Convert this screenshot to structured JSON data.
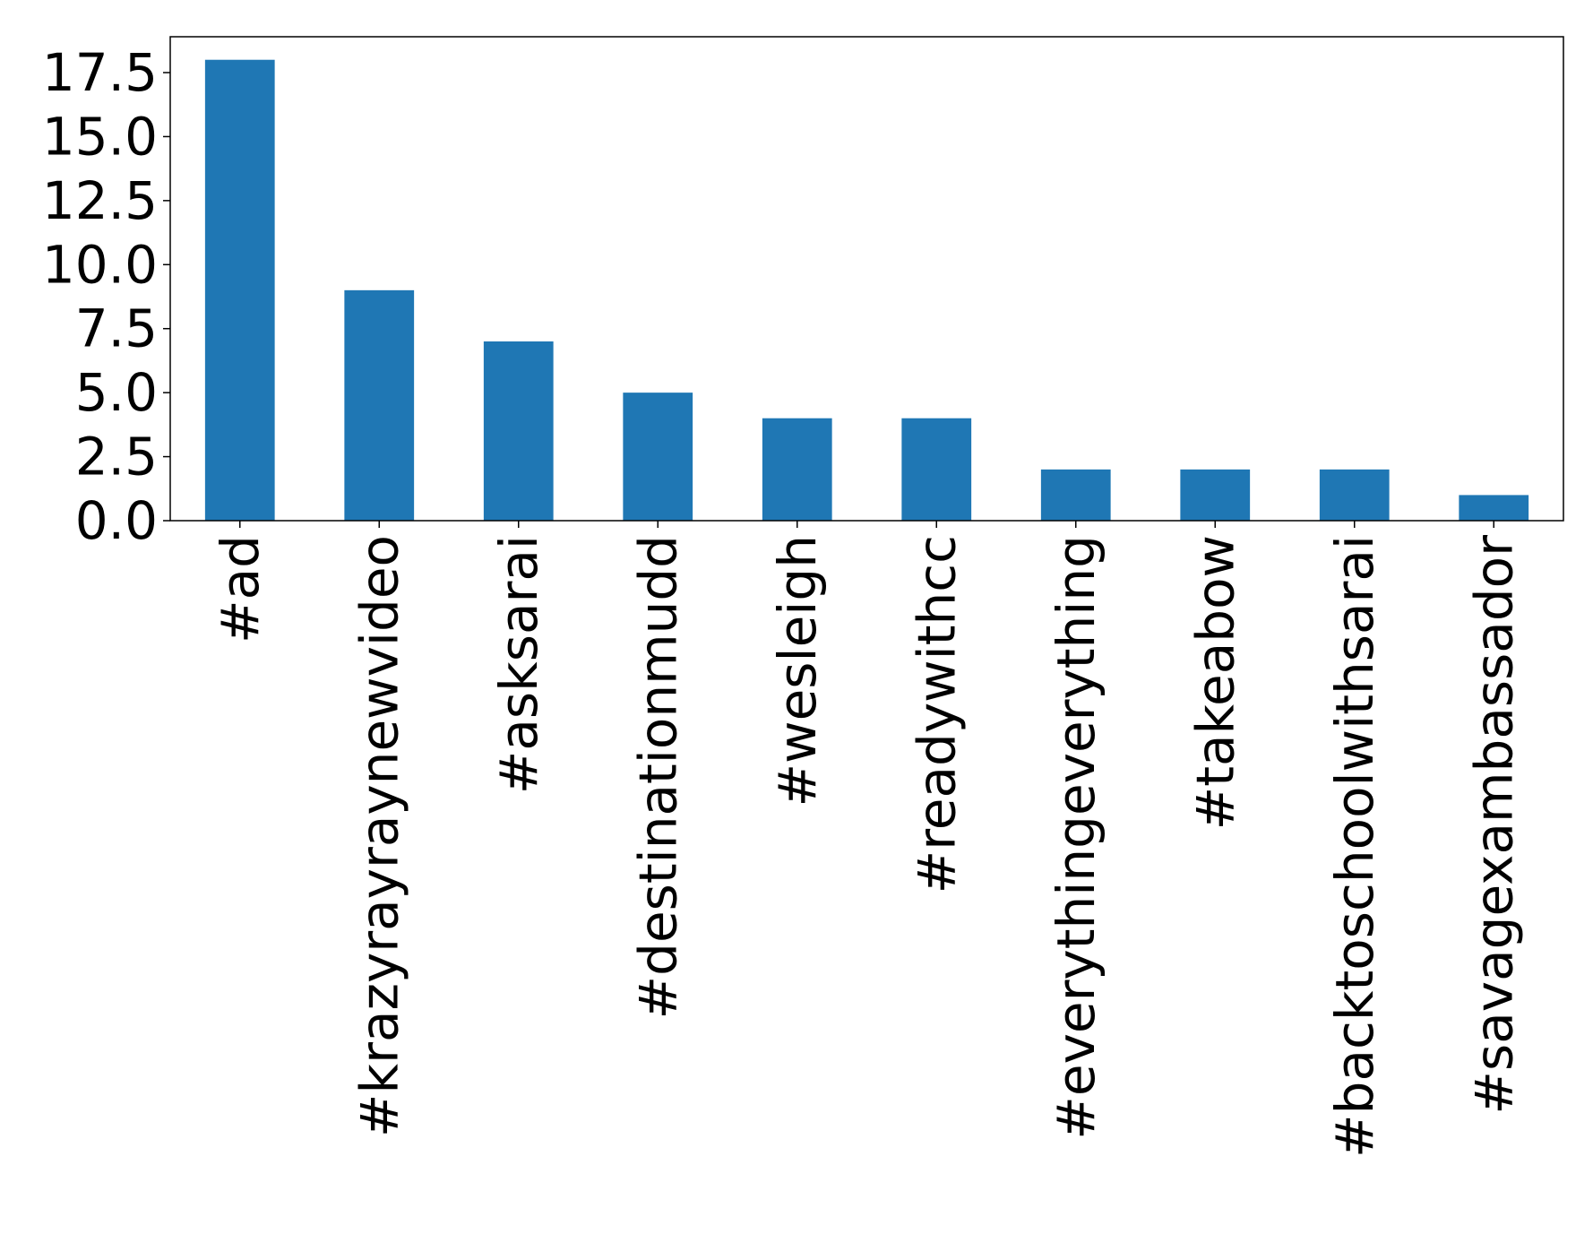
{
  "chart_data": {
    "type": "bar",
    "title": "",
    "xlabel": "",
    "ylabel": "",
    "categories": [
      "#ad",
      "#krazyrayraynewvideo",
      "#asksarai",
      "#destinationmudd",
      "#wesleigh",
      "#readywithcc",
      "#everythingeverything",
      "#takeabow",
      "#backtoschoolwithsarai",
      "#savagexambassador"
    ],
    "values": [
      18,
      9,
      7,
      5,
      4,
      4,
      2,
      2,
      2,
      1
    ],
    "ylim": [
      0,
      18.9
    ],
    "yticks": [
      "0.0",
      "2.5",
      "5.0",
      "7.5",
      "10.0",
      "12.5",
      "15.0",
      "17.5"
    ],
    "ytick_values": [
      0,
      2.5,
      5,
      7.5,
      10,
      12.5,
      15,
      17.5
    ],
    "bar_color": "#1f77b4",
    "grid": false,
    "legend": "none"
  }
}
